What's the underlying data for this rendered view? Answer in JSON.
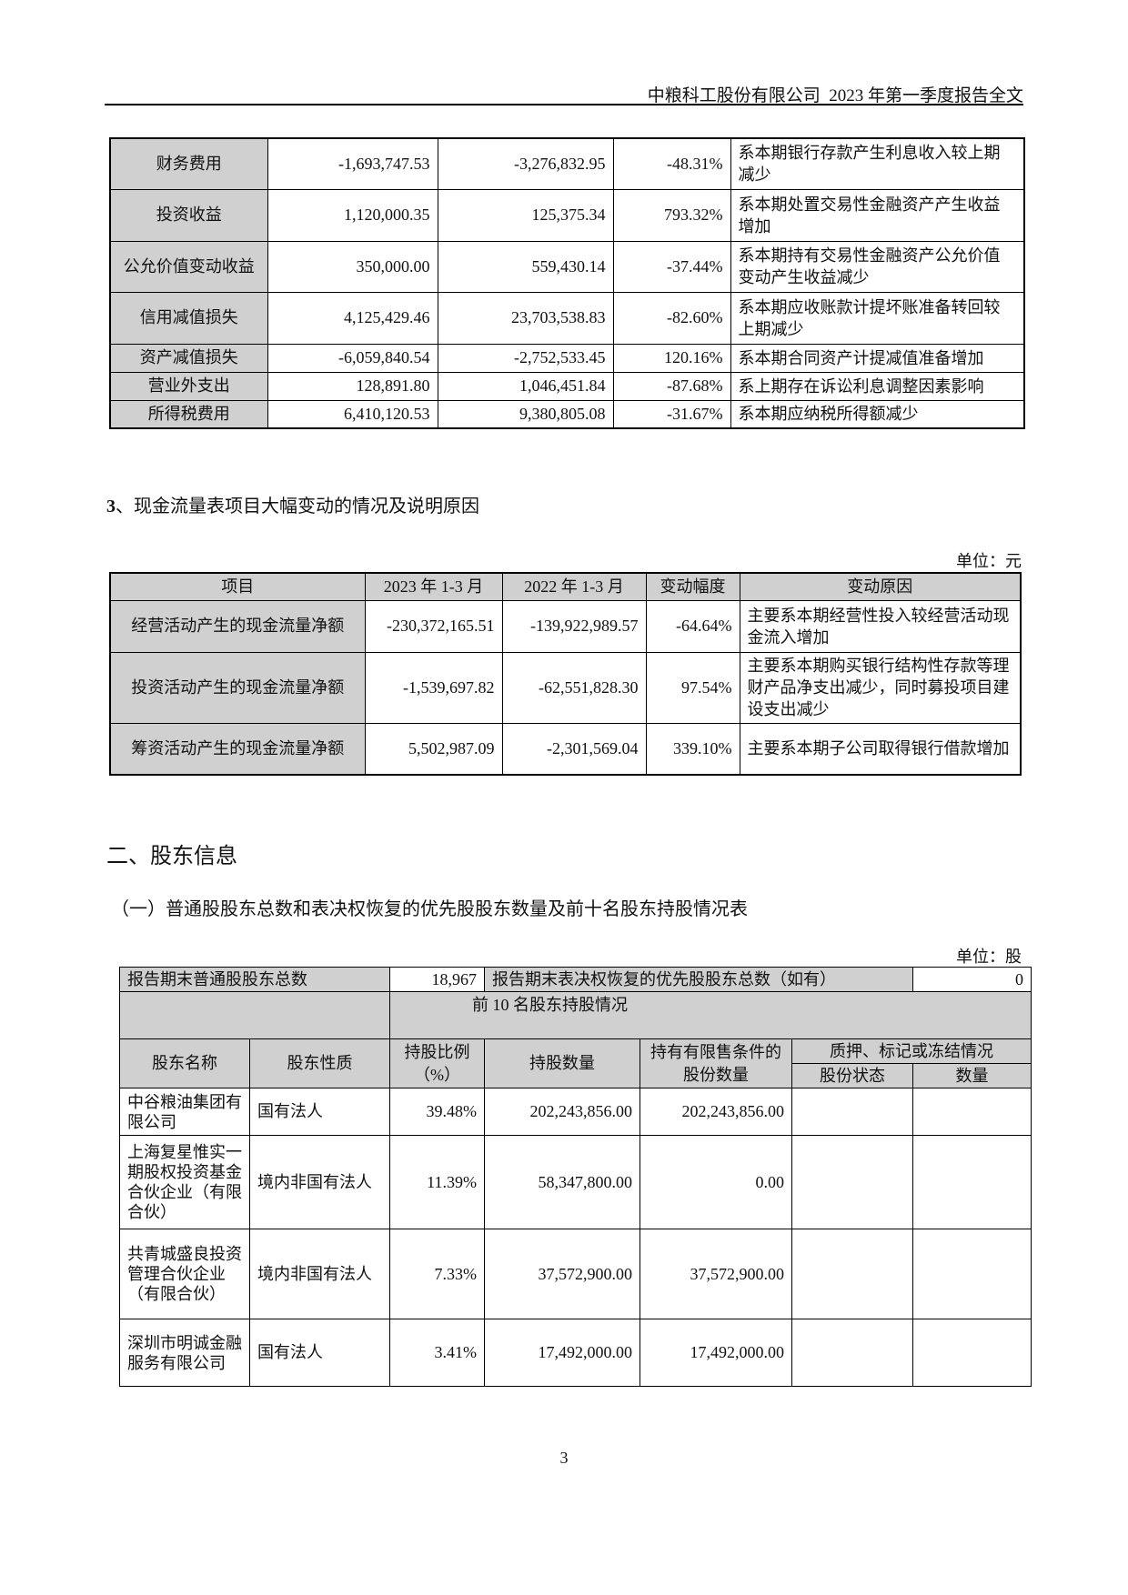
{
  "header": {
    "title": "中粮科工股份有限公司  2023 年第一季度报告全文"
  },
  "income_table": {
    "rows": [
      {
        "item": "财务费用",
        "current": "-1,693,747.53",
        "previous": "-3,276,832.95",
        "change": "-48.31%",
        "reason": "系本期银行存款产生利息收入较上期减少"
      },
      {
        "item": "投资收益",
        "current": "1,120,000.35",
        "previous": "125,375.34",
        "change": "793.32%",
        "reason": "系本期处置交易性金融资产产生收益增加"
      },
      {
        "item": "公允价值变动收益",
        "current": "350,000.00",
        "previous": "559,430.14",
        "change": "-37.44%",
        "reason": "系本期持有交易性金融资产公允价值变动产生收益减少"
      },
      {
        "item": "信用减值损失",
        "current": "4,125,429.46",
        "previous": "23,703,538.83",
        "change": "-82.60%",
        "reason": "系本期应收账款计提坏账准备转回较上期减少"
      },
      {
        "item": "资产减值损失",
        "current": "-6,059,840.54",
        "previous": "-2,752,533.45",
        "change": "120.16%",
        "reason": "系本期合同资产计提减值准备增加"
      },
      {
        "item": "营业外支出",
        "current": "128,891.80",
        "previous": "1,046,451.84",
        "change": "-87.68%",
        "reason": "系上期存在诉讼利息调整因素影响"
      },
      {
        "item": "所得税费用",
        "current": "6,410,120.53",
        "previous": "9,380,805.08",
        "change": "-31.67%",
        "reason": "系本期应纳税所得额减少"
      }
    ]
  },
  "cashflow_section": {
    "heading_num": "3",
    "heading": "、现金流量表项目大幅变动的情况及说明原因",
    "unit": "单位：元",
    "columns": [
      "项目",
      "2023 年  1-3 月",
      "2022 年  1-3 月",
      "变动幅度",
      "变动原因"
    ],
    "rows": [
      {
        "item": "经营活动产生的现金流量净额",
        "current": "-230,372,165.51",
        "previous": "-139,922,989.57",
        "change": "-64.64%",
        "reason": "主要系本期经营性投入较经营活动现金流入增加"
      },
      {
        "item": "投资活动产生的现金流量净额",
        "current": "-1,539,697.82",
        "previous": "-62,551,828.30",
        "change": "97.54%",
        "reason": "主要系本期购买银行结构性存款等理财产品净支出减少，同时募投项目建设支出减少"
      },
      {
        "item": "筹资活动产生的现金流量净额",
        "current": "5,502,987.09",
        "previous": "-2,301,569.04",
        "change": "339.10%",
        "reason": "主要系本期子公司取得银行借款增加"
      }
    ]
  },
  "shareholder_section": {
    "title": "二、股东信息",
    "subtitle": "（一）普通股股东总数和表决权恢复的优先股股东数量及前十名股东持股情况表",
    "unit": "单位：股",
    "total_label": "报告期末普通股股东总数",
    "total_value": "18,967",
    "pref_label": "报告期末表决权恢复的优先股股东总数（如有）",
    "pref_value": "0",
    "top10_label": "前 10 名股东持股情况",
    "columns": {
      "name": "股东名称",
      "nature": "股东性质",
      "ratio": "持股比例（%）",
      "shares": "持股数量",
      "restricted": "持有有限售条件的股份数量",
      "pledge": "质押、标记或冻结情况",
      "pledge_status": "股份状态",
      "pledge_qty": "数量"
    },
    "rows": [
      {
        "name": "中谷粮油集团有限公司",
        "nature": "国有法人",
        "ratio": "39.48%",
        "shares": "202,243,856.00",
        "restricted": "202,243,856.00",
        "status": "",
        "qty": ""
      },
      {
        "name": "上海复星惟实一期股权投资基金合伙企业（有限合伙）",
        "nature": "境内非国有法人",
        "ratio": "11.39%",
        "shares": "58,347,800.00",
        "restricted": "0.00",
        "status": "",
        "qty": ""
      },
      {
        "name": "共青城盛良投资管理合伙企业（有限合伙）",
        "nature": "境内非国有法人",
        "ratio": "7.33%",
        "shares": "37,572,900.00",
        "restricted": "37,572,900.00",
        "status": "",
        "qty": ""
      },
      {
        "name": "深圳市明诚金融服务有限公司",
        "nature": "国有法人",
        "ratio": "3.41%",
        "shares": "17,492,000.00",
        "restricted": "17,492,000.00",
        "status": "",
        "qty": ""
      }
    ]
  },
  "footer": {
    "page_number": "3"
  }
}
